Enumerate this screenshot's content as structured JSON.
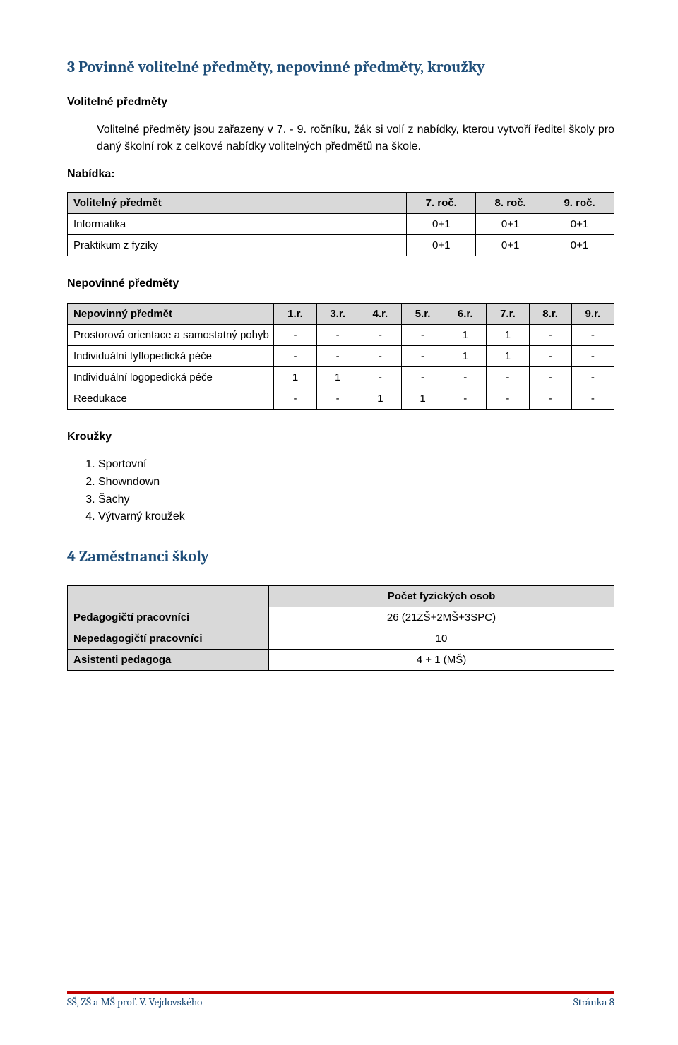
{
  "heading_subjects": "3 Povinně volitelné předměty, nepovinné předměty, kroužky",
  "sub_volitelne": "Volitelné předměty",
  "intro_text": "Volitelné předměty jsou zařazeny v 7. - 9. ročníku, žák si volí z nabídky, kterou vytvoří ředitel školy pro daný školní rok z celkové nabídky volitelných předmětů na škole.",
  "nabidka_label": "Nabídka:",
  "table1": {
    "columns": [
      "Volitelný předmět",
      "7. roč.",
      "8. roč.",
      "9. roč."
    ],
    "rows": [
      [
        "Informatika",
        "0+1",
        "0+1",
        "0+1"
      ],
      [
        "Praktikum z fyziky",
        "0+1",
        "0+1",
        "0+1"
      ]
    ],
    "header_bg": "#d9d9d9",
    "border_color": "#000000",
    "font_size": 15
  },
  "sub_nepovinne": "Nepovinné předměty",
  "table2": {
    "columns": [
      "Nepovinný předmět",
      "1.r.",
      "3.r.",
      "4.r.",
      "5.r.",
      "6.r.",
      "7.r.",
      "8.r.",
      "9.r."
    ],
    "rows": [
      [
        "Prostorová orientace a samostatný pohyb",
        "-",
        "-",
        "-",
        "-",
        "1",
        "1",
        "-",
        "-"
      ],
      [
        "Individuální tyflopedická péče",
        "-",
        "-",
        "-",
        "-",
        "1",
        "1",
        "-",
        "-"
      ],
      [
        "Individuální logopedická péče",
        "1",
        "1",
        "-",
        "-",
        "-",
        "-",
        "-",
        "-"
      ],
      [
        "Reedukace",
        "-",
        "-",
        "1",
        "1",
        "-",
        "-",
        "-",
        "-"
      ]
    ],
    "header_bg": "#d9d9d9",
    "border_color": "#000000",
    "font_size": 15
  },
  "sub_krouzky": "Kroužky",
  "krouzky_list": [
    "Sportovní",
    "Showndown",
    "Šachy",
    "Výtvarný kroužek"
  ],
  "heading_staff": "4 Zaměstnanci školy",
  "table3": {
    "header": "Počet fyzických osob",
    "rows": [
      [
        "Pedagogičtí pracovníci",
        "26 (21ZŠ+2MŠ+3SPC)"
      ],
      [
        "Nepedagogičtí pracovníci",
        "10"
      ],
      [
        "Asistenti pedagoga",
        "4 + 1 (MŠ)"
      ]
    ],
    "header_bg": "#d9d9d9",
    "label_bg": "#d9d9d9",
    "border_color": "#000000",
    "font_size": 15
  },
  "footer_left": "SŠ, ZŠ a MŠ prof. V. Vejdovského",
  "footer_right": "Stránka 8",
  "footer_color": "#1f4e79",
  "rule_color": "#c00000"
}
